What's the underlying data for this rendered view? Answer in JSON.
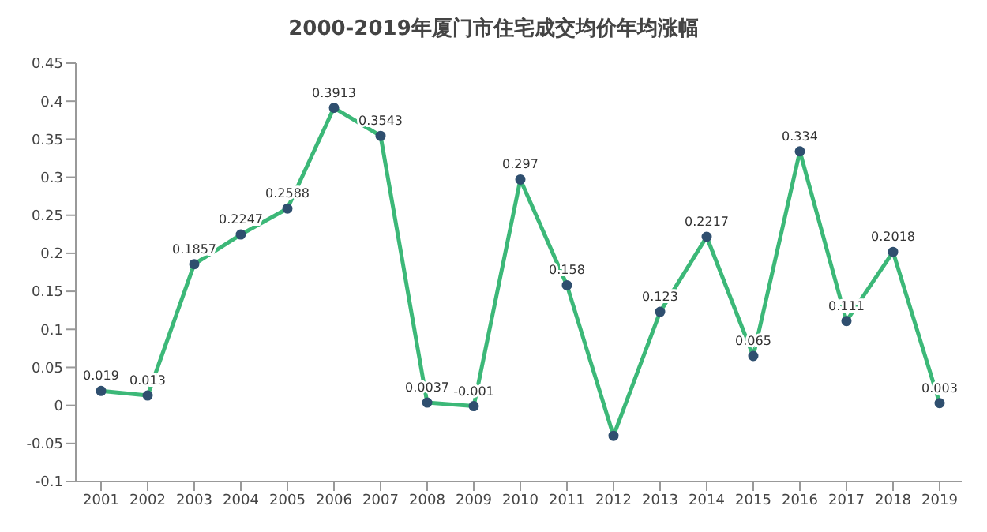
{
  "chart_data": {
    "type": "line",
    "title": "2000-2019年厦门市住宅成交均价年均涨幅",
    "categories": [
      "2001",
      "2002",
      "2003",
      "2004",
      "2005",
      "2006",
      "2007",
      "2008",
      "2009",
      "2010",
      "2011",
      "2012",
      "2013",
      "2014",
      "2015",
      "2016",
      "2017",
      "2018",
      "2019"
    ],
    "series": [
      {
        "color": "#3cb878",
        "values": [
          0.019,
          0.013,
          0.1857,
          0.2247,
          0.2588,
          0.3913,
          0.3543,
          0.0037,
          -0.001,
          0.297,
          0.158,
          -0.04,
          0.123,
          0.2217,
          0.065,
          0.334,
          0.111,
          0.2018,
          0.003
        ],
        "value_labels": [
          "0.019",
          "0.013",
          "0.1857",
          "0.2247",
          "0.2588",
          "0.3913",
          "0.3543",
          "0.0037",
          "-0.001",
          "0.297",
          "0.158",
          null,
          "0.123",
          "0.2217",
          "0.065",
          "0.334",
          "0.111",
          "0.2018",
          "0.003"
        ]
      }
    ],
    "ylim": [
      -0.1,
      0.45
    ],
    "yticks": [
      -0.1,
      -0.05,
      0,
      0.05,
      0.1,
      0.15,
      0.2,
      0.25,
      0.3,
      0.35,
      0.4,
      0.45
    ],
    "grid": false,
    "marker": "circle",
    "line_style": "solid"
  }
}
